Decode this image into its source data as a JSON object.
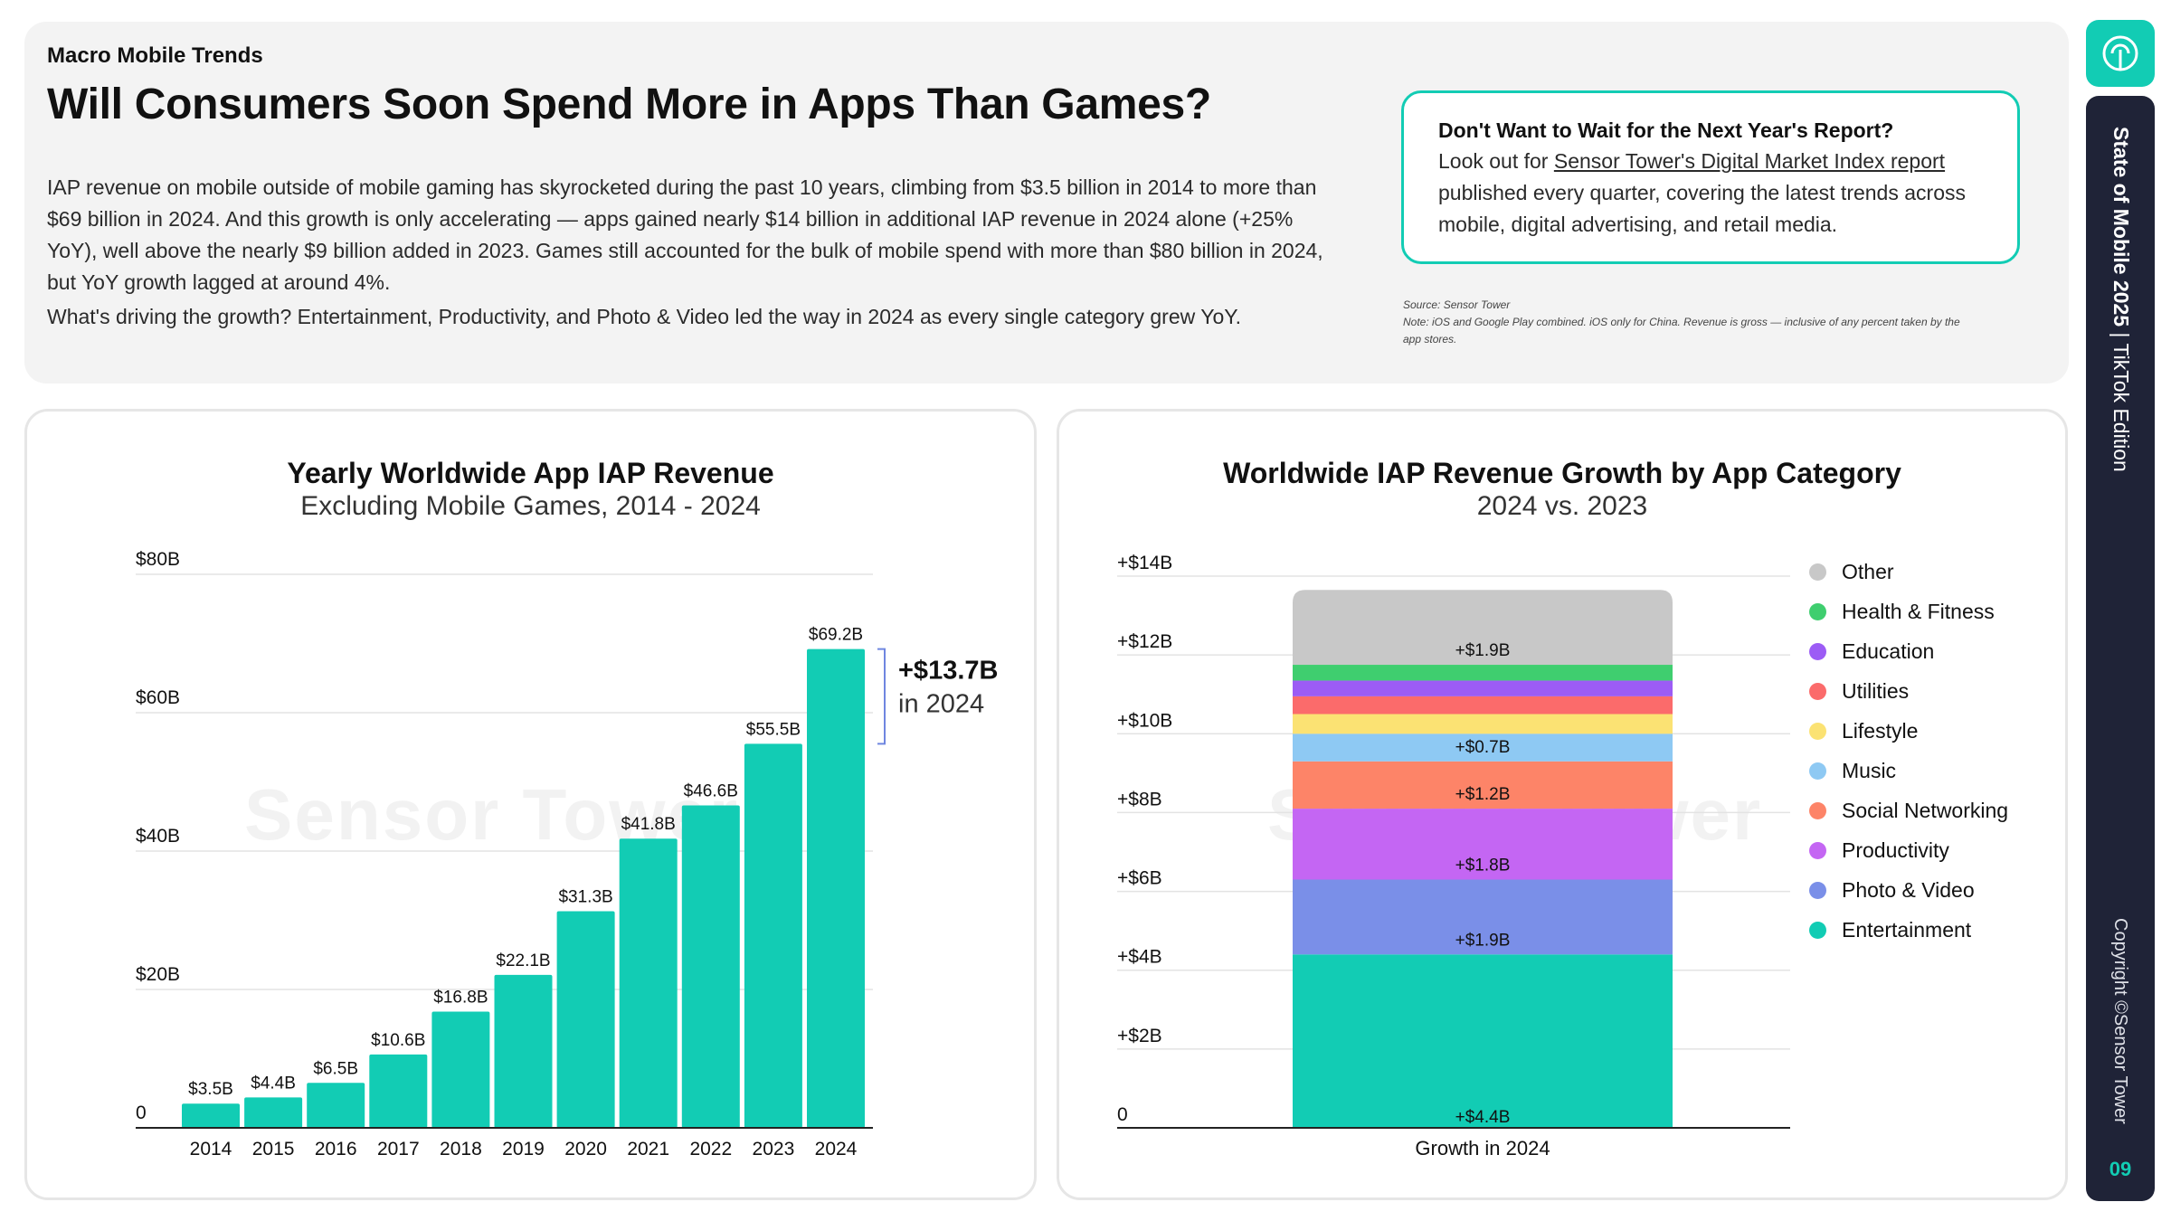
{
  "header": {
    "section": "Macro Mobile Trends",
    "title": "Will Consumers Soon Spend More in Apps Than Games?",
    "paragraph1": "IAP revenue on mobile outside of mobile gaming has skyrocketed during the past 10 years, climbing from $3.5 billion in 2014 to more than $69 billion in 2024. And this growth is only accelerating — apps gained nearly $14 billion in additional IAP revenue in 2024 alone (+25% YoY), well above the nearly $9 billion added in 2023. Games still accounted for the bulk of mobile spend with more than $80 billion in 2024, but YoY growth lagged at around 4%.",
    "paragraph2": "What's driving the growth? Entertainment, Productivity, and Photo & Video led the way in 2024 as every single category grew YoY."
  },
  "callout": {
    "title": "Don't Want to Wait for the Next Year's Report?",
    "prefix": "Look out for ",
    "link": "Sensor Tower's Digital Market Index report",
    "suffix": " published every quarter, covering the latest trends across mobile, digital advertising, and retail media."
  },
  "source": {
    "line1": "Source: Sensor Tower",
    "line2": "Note: iOS and Google Play combined. iOS only for China. Revenue is gross — inclusive of any percent taken by the app stores."
  },
  "watermark": "Sensor Tower",
  "sidebar": {
    "title_bold": "State of Mobile 2025",
    "separator": " | ",
    "title_rest": "TikTok Edition",
    "copyright": "Copyright ©Sensor Tower",
    "page": "09"
  },
  "colors": {
    "accent": "#12ccb4",
    "bar": "#12ccb4",
    "dark_tab": "#1f2337"
  },
  "chart_data": [
    {
      "type": "bar",
      "title": "Yearly Worldwide App IAP Revenue",
      "subtitle": "Excluding Mobile Games, 2014 - 2024",
      "categories": [
        "2014",
        "2015",
        "2016",
        "2017",
        "2018",
        "2019",
        "2020",
        "2021",
        "2022",
        "2023",
        "2024"
      ],
      "values": [
        3.5,
        4.4,
        6.5,
        10.6,
        16.8,
        22.1,
        31.3,
        41.8,
        46.6,
        55.5,
        69.2
      ],
      "data_labels": [
        "$3.5B",
        "$4.4B",
        "$6.5B",
        "$10.6B",
        "$16.8B",
        "$22.1B",
        "$31.3B",
        "$41.8B",
        "$46.6B",
        "$55.5B",
        "$69.2B"
      ],
      "ylim": [
        0,
        80
      ],
      "y_ticks": [
        0,
        20,
        40,
        60,
        80
      ],
      "y_tick_labels": [
        "0",
        "$20B",
        "$40B",
        "$60B",
        "$80B"
      ],
      "annotation": {
        "value": "+$13.7B",
        "text": "in 2024",
        "from": 55.5,
        "to": 69.2
      },
      "grid": true
    },
    {
      "type": "bar",
      "stacked": true,
      "title": "Worldwide IAP Revenue Growth by App Category",
      "subtitle": "2024 vs. 2023",
      "categories": [
        "Growth in 2024"
      ],
      "series": [
        {
          "name": "Entertainment",
          "value": 4.4,
          "label": "+$4.4B",
          "color": "#12ccb4"
        },
        {
          "name": "Photo & Video",
          "value": 1.9,
          "label": "+$1.9B",
          "color": "#7a8fe8"
        },
        {
          "name": "Productivity",
          "value": 1.8,
          "label": "+$1.8B",
          "color": "#c466f3"
        },
        {
          "name": "Social Networking",
          "value": 1.2,
          "label": "+$1.2B",
          "color": "#fd8468"
        },
        {
          "name": "Music",
          "value": 0.7,
          "label": "+$0.7B",
          "color": "#8ec9f3"
        },
        {
          "name": "Lifestyle",
          "value": 0.5,
          "label": "",
          "color": "#fbe273"
        },
        {
          "name": "Utilities",
          "value": 0.45,
          "label": "",
          "color": "#fb6b6b"
        },
        {
          "name": "Education",
          "value": 0.4,
          "label": "",
          "color": "#9c5cf5"
        },
        {
          "name": "Health & Fitness",
          "value": 0.4,
          "label": "",
          "color": "#3fce6f"
        },
        {
          "name": "Other",
          "value": 1.9,
          "label": "+$1.9B",
          "color": "#c8c8c8"
        }
      ],
      "ylim": [
        0,
        14
      ],
      "y_ticks": [
        0,
        2,
        4,
        6,
        8,
        10,
        12,
        14
      ],
      "y_tick_labels": [
        "0",
        "+$2B",
        "+$4B",
        "+$6B",
        "+$8B",
        "+$10B",
        "+$12B",
        "+$14B"
      ],
      "legend": [
        "Other",
        "Health & Fitness",
        "Education",
        "Utilities",
        "Lifestyle",
        "Music",
        "Social Networking",
        "Productivity",
        "Photo & Video",
        "Entertainment"
      ],
      "legend_position": "right",
      "grid": true
    }
  ]
}
